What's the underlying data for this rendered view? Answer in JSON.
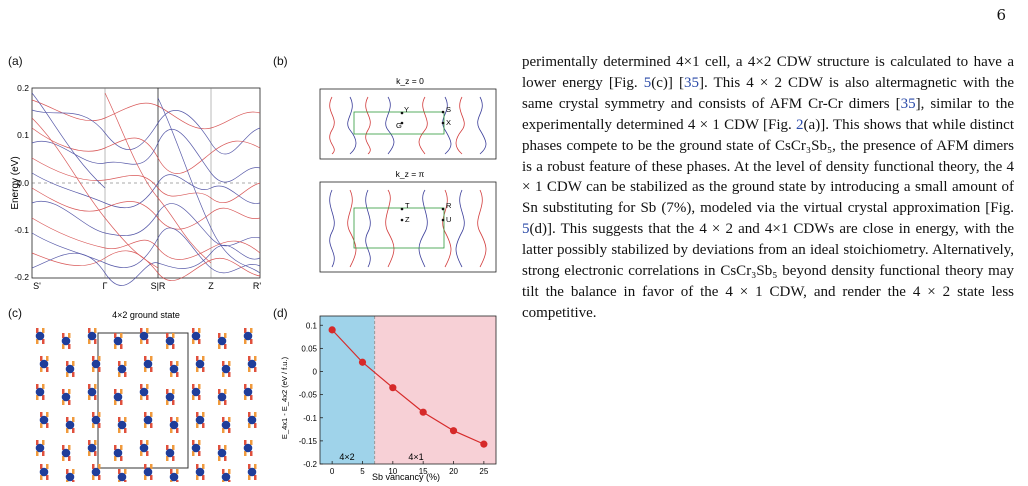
{
  "page": {
    "number": "6"
  },
  "figure": {
    "panel_labels": [
      "(a)",
      "(b)",
      "(c)",
      "(d)"
    ],
    "a": {
      "ylabel": "Energy (eV)",
      "yticks": [
        "0.2",
        "0.1",
        "0.0",
        "-0.1",
        "-0.2"
      ],
      "xticks": [
        "S'",
        "Γ",
        "S|R",
        "Z",
        "R'"
      ]
    },
    "b": {
      "top_title": "k_z = 0",
      "bottom_title": "k_z = π",
      "top_points": [
        "Y",
        "G",
        "S",
        "X"
      ],
      "bottom_points": [
        "T",
        "Z",
        "R",
        "U"
      ]
    },
    "c": {
      "title": "4×2 ground state"
    },
    "d": {
      "ylabel": "E_4x1 - E_4x2 (eV / f.u.)",
      "xlabel": "Sb vancancy (%)",
      "region_left": "4×2",
      "region_right": "4×1"
    }
  },
  "chart_data": {
    "type": "line",
    "title": "",
    "xlabel": "Sb vancancy (%)",
    "ylabel": "E4x1 - E4x2 (eV / f.u.)",
    "x": [
      0,
      5,
      10,
      15,
      20,
      25
    ],
    "values": [
      0.09,
      0.02,
      -0.035,
      -0.088,
      -0.128,
      -0.157
    ],
    "xlim": [
      -2,
      27
    ],
    "ylim": [
      -0.2,
      0.12
    ],
    "xticks": [
      0,
      5,
      10,
      15,
      20,
      25
    ],
    "yticks": [
      0.1,
      0.05,
      0,
      -0.05,
      -0.1,
      -0.15,
      -0.2
    ],
    "boundary_x": 7,
    "colors": {
      "line": "#d62a2a",
      "left_region": "#9fd3ea",
      "right_region": "#f7d0d6"
    }
  },
  "text": {
    "runs": [
      "perimentally determined 4×1 cell, a 4×2 CDW structure is calculated to have a lower energy [Fig. ",
      "5",
      "(c)] [",
      "35",
      "]. This 4 × 2 CDW is also altermagnetic with the same crystal symmetry and consists of AFM Cr-Cr dimers [",
      "35",
      "], similar to the experimentally determined 4 × 1 CDW [Fig. ",
      "2",
      "(a)]. This shows that while distinct phases compete to be the ground state of CsCr₃Sb₅, the presence of AFM dimers is a robust feature of these phases. At the level of density functional theory, the 4 × 1 CDW can be stabilized as the ground state by introducing a small amount of Sn substituting for Sb (7%), modeled via the virtual crystal approximation [Fig. ",
      "5",
      "(d)]. This suggests that the 4 × 2 and 4×1 CDWs are close in energy, with the latter possibly stabilized by deviations from an ideal stoichiometry. Alternatively, strong electronic correlations in CsCr₃Sb₅ beyond density functional theory may tilt the balance in favor of the 4 × 1 CDW, and render the 4 × 2 state less competitive."
    ]
  }
}
